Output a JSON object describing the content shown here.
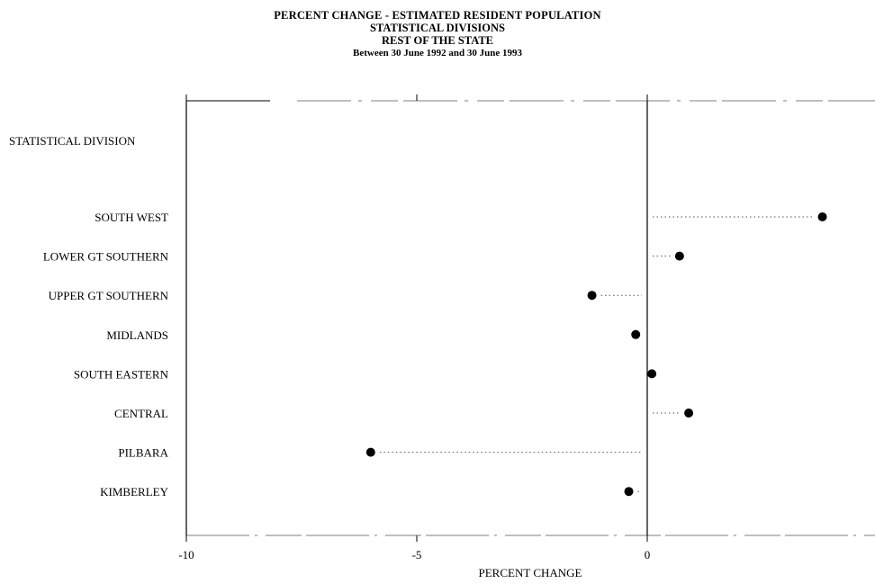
{
  "titles": {
    "line1": "PERCENT CHANGE - ESTIMATED RESIDENT POPULATION",
    "line2": "STATISTICAL DIVISIONS",
    "line3": "REST OF THE STATE",
    "line4": "Between 30 June 1992 and 30 June 1993"
  },
  "chart_data": {
    "type": "scatter",
    "subtype": "dot-plot",
    "xlabel": "PERCENT CHANGE",
    "ylabel": "",
    "header_label": "STATISTICAL DIVISION",
    "xlim": [
      -10,
      5
    ],
    "xticks": [
      -10,
      -5,
      0
    ],
    "grid": false,
    "categories": [
      "SOUTH WEST",
      "LOWER GT SOUTHERN",
      "UPPER GT SOUTHERN",
      "MIDLANDS",
      "SOUTH EASTERN",
      "CENTRAL",
      "PILBARA",
      "KIMBERLEY"
    ],
    "values": [
      3.8,
      0.7,
      -1.2,
      -0.25,
      0.1,
      0.9,
      -6.0,
      -0.4
    ],
    "colors": {
      "marker": "#000000",
      "leader": "#555555",
      "axis": "#000000"
    }
  }
}
